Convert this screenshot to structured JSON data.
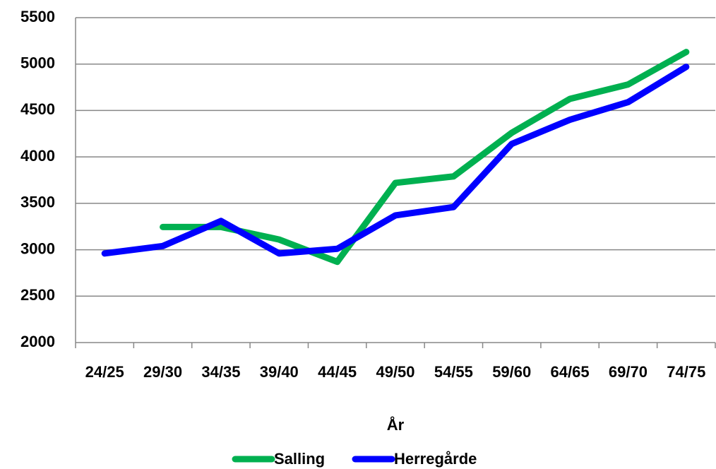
{
  "chart_data": {
    "type": "line",
    "x_label": "År",
    "categories": [
      "24/25",
      "29/30",
      "34/35",
      "39/40",
      "44/45",
      "49/50",
      "54/55",
      "59/60",
      "64/65",
      "69/70",
      "74/75"
    ],
    "series": [
      {
        "name": "Salling",
        "color": "#00b050",
        "values": [
          null,
          3245,
          3245,
          3110,
          2870,
          3720,
          3790,
          4260,
          4625,
          4780,
          5130
        ]
      },
      {
        "name": "Herregårde",
        "color": "#0000ff",
        "values": [
          2960,
          3040,
          3310,
          2960,
          3010,
          3370,
          3460,
          4140,
          4400,
          4590,
          4970
        ]
      }
    ],
    "ylim": [
      2000,
      5500
    ],
    "yticks": [
      2000,
      2500,
      3000,
      3500,
      4000,
      4500,
      5000,
      5500
    ],
    "grid": true,
    "legend": "bottom"
  }
}
